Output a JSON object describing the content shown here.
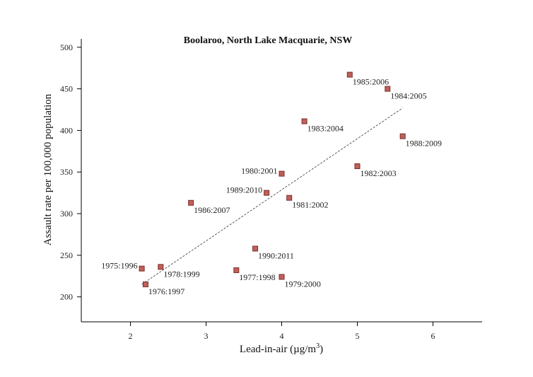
{
  "chart_data": {
    "type": "scatter",
    "title": "Boolaroo, North Lake Macquarie, NSW",
    "xlabel": "Lead-in-air (µg/m³)",
    "xlabel_parts": {
      "main": "Lead-in-air (µg/m",
      "sup": "3",
      "tail": ")"
    },
    "ylabel": "Assault rate per 100,000 population",
    "xlim": [
      1.35,
      6.65
    ],
    "ylim": [
      170,
      510
    ],
    "xticks": [
      2,
      3,
      4,
      5,
      6
    ],
    "yticks": [
      200,
      250,
      300,
      350,
      400,
      450,
      500
    ],
    "point_color": "#c0605a",
    "points": [
      {
        "label": "1975:1996",
        "x": 2.15,
        "y": 234
      },
      {
        "label": "1976:1997",
        "x": 2.2,
        "y": 215
      },
      {
        "label": "1978:1999",
        "x": 2.4,
        "y": 236
      },
      {
        "label": "1986:2007",
        "x": 2.8,
        "y": 313
      },
      {
        "label": "1977:1998",
        "x": 3.4,
        "y": 232
      },
      {
        "label": "1990:2011",
        "x": 3.65,
        "y": 258
      },
      {
        "label": "1989:2010",
        "x": 3.8,
        "y": 325
      },
      {
        "label": "1980:2001",
        "x": 4.0,
        "y": 348
      },
      {
        "label": "1979:2000",
        "x": 4.0,
        "y": 224
      },
      {
        "label": "1981:2002",
        "x": 4.1,
        "y": 319
      },
      {
        "label": "1983:2004",
        "x": 4.3,
        "y": 411
      },
      {
        "label": "1985:2006",
        "x": 4.9,
        "y": 467
      },
      {
        "label": "1982:2003",
        "x": 5.0,
        "y": 357
      },
      {
        "label": "1984:2005",
        "x": 5.4,
        "y": 450
      },
      {
        "label": "1988:2009",
        "x": 5.6,
        "y": 393
      }
    ],
    "trendline": {
      "x": [
        2.15,
        5.6
      ],
      "y": [
        215,
        427
      ]
    },
    "grid": false,
    "legend": "none"
  }
}
